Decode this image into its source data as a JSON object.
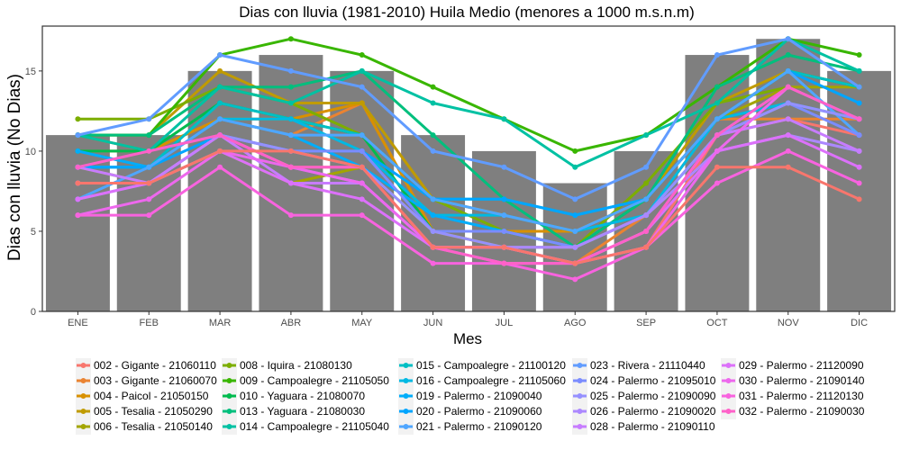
{
  "chart_data": {
    "type": "bar",
    "title": "Dias con lluvia (1981-2010) Huila Medio (menores a 1000 m.s.n.m)",
    "xlabel": "Mes",
    "ylabel": "Dias con lluvia (No Dias)",
    "categories": [
      "ENE",
      "FEB",
      "MAR",
      "ABR",
      "MAY",
      "JUN",
      "JUL",
      "AGO",
      "SEP",
      "OCT",
      "NOV",
      "DIC"
    ],
    "bar_values": [
      11,
      11,
      15,
      16,
      15,
      11,
      10,
      8,
      10,
      16,
      17,
      15
    ],
    "bar_color": "#7f7f7f",
    "ylim": [
      0,
      17.8
    ],
    "yticks": [
      0,
      5,
      10,
      15
    ],
    "grid": false,
    "legend_position": "bottom",
    "series": [
      {
        "name": "002 - Gigante - 21060110",
        "color": "#F8766D",
        "values": [
          8,
          8,
          11,
          9,
          9,
          4,
          4,
          3,
          4,
          11,
          12,
          11
        ]
      },
      {
        "name": "003 - Gigante - 21060070",
        "color": "#EA8331",
        "values": [
          10,
          10,
          12,
          11,
          13,
          5,
          4,
          3,
          6,
          12,
          12,
          12
        ]
      },
      {
        "name": "004 - Paicol - 21050150",
        "color": "#D89000",
        "values": [
          11,
          10,
          12,
          12,
          13,
          5,
          5,
          5,
          7,
          12,
          15,
          14
        ]
      },
      {
        "name": "005 - Tesalia - 21050290",
        "color": "#C09B00",
        "values": [
          11,
          11,
          15,
          13,
          13,
          7,
          6,
          5,
          7,
          13,
          15,
          14
        ]
      },
      {
        "name": "006 - Tesalia - 21050140",
        "color": "#A3A500",
        "values": [
          9,
          8,
          10,
          8,
          9,
          5,
          4,
          4,
          6,
          12,
          14,
          14
        ]
      },
      {
        "name": "008 - Iquira - 21080130",
        "color": "#7CAE00",
        "values": [
          12,
          12,
          14,
          13,
          11,
          7,
          5,
          4,
          8,
          13,
          14,
          12
        ]
      },
      {
        "name": "009 - Campoalegre - 21105050",
        "color": "#39B600",
        "values": [
          11,
          11,
          16,
          17,
          16,
          14,
          12,
          10,
          11,
          14,
          17,
          16
        ]
      },
      {
        "name": "010 - Yaguara - 21080070",
        "color": "#00BB4E",
        "values": [
          10,
          10,
          13,
          12,
          11,
          5,
          5,
          4,
          7,
          12,
          15,
          14
        ]
      },
      {
        "name": "013 - Yaguara - 21080030",
        "color": "#00BF7D",
        "values": [
          11,
          11,
          14,
          14,
          15,
          11,
          7,
          4,
          7,
          14,
          16,
          15
        ]
      },
      {
        "name": "014 - Campoalegre - 21105040",
        "color": "#00C1A3",
        "values": [
          11,
          10,
          14,
          13,
          15,
          13,
          12,
          9,
          11,
          13,
          17,
          15
        ]
      },
      {
        "name": "015 - Campoalegre - 21100120",
        "color": "#00BFC4",
        "values": [
          9,
          9,
          13,
          12,
          11,
          7,
          7,
          6,
          7,
          12,
          15,
          14
        ]
      },
      {
        "name": "016 - Campoalegre - 21105060",
        "color": "#00B9E3",
        "values": [
          9,
          9,
          12,
          12,
          10,
          6,
          6,
          5,
          6,
          12,
          13,
          12
        ]
      },
      {
        "name": "019 - Palermo - 21090040",
        "color": "#00ADFA",
        "values": [
          10,
          9,
          12,
          11,
          9,
          6,
          5,
          4,
          6,
          11,
          14,
          12
        ]
      },
      {
        "name": "020 - Palermo - 21090060",
        "color": "#00A5FF",
        "values": [
          9,
          9,
          11,
          10,
          10,
          7,
          7,
          6,
          7,
          12,
          15,
          13
        ]
      },
      {
        "name": "021 - Palermo - 21090120",
        "color": "#4FA6FF",
        "values": [
          7,
          9,
          12,
          11,
          11,
          7,
          6,
          5,
          7,
          12,
          15,
          11
        ]
      },
      {
        "name": "023 - Rivera - 21110440",
        "color": "#619CFF",
        "values": [
          11,
          12,
          16,
          15,
          14,
          10,
          9,
          7,
          9,
          16,
          17,
          14
        ]
      },
      {
        "name": "024 - Palermo - 21095010",
        "color": "#7B8CFF",
        "values": [
          8,
          8,
          11,
          10,
          10,
          5,
          5,
          4,
          6,
          11,
          13,
          11
        ]
      },
      {
        "name": "025 - Palermo - 21090090",
        "color": "#9590FF",
        "values": [
          7,
          8,
          11,
          10,
          9,
          5,
          4,
          4,
          6,
          11,
          13,
          12
        ]
      },
      {
        "name": "026 - Palermo - 21090020",
        "color": "#AC88FF",
        "values": [
          8,
          8,
          11,
          9,
          8,
          4,
          4,
          4,
          6,
          10,
          11,
          10
        ]
      },
      {
        "name": "028 - Palermo - 21090110",
        "color": "#C77CFF",
        "values": [
          9,
          8,
          11,
          8,
          8,
          4,
          4,
          3,
          5,
          11,
          12,
          10
        ]
      },
      {
        "name": "029 - Palermo - 21120090",
        "color": "#DC71FA",
        "values": [
          7,
          8,
          10,
          8,
          7,
          4,
          3,
          3,
          5,
          10,
          11,
          9
        ]
      },
      {
        "name": "030 - Palermo - 21090140",
        "color": "#ED68ED",
        "values": [
          6,
          7,
          10,
          9,
          8,
          4,
          4,
          3,
          4,
          10,
          14,
          12
        ]
      },
      {
        "name": "031 - Palermo - 21120130",
        "color": "#F863DF",
        "values": [
          6,
          6,
          9,
          6,
          6,
          3,
          3,
          2,
          4,
          8,
          10,
          8
        ]
      },
      {
        "name": "032 - Palermo - 21090030",
        "color": "#FF61C9",
        "values": [
          9,
          10,
          11,
          9,
          9,
          4,
          3,
          3,
          5,
          11,
          14,
          12
        ]
      },
      {
        "name": "",
        "color": "#F8766D",
        "values": [
          8,
          8,
          10,
          10,
          9,
          4,
          4,
          3,
          4,
          9,
          9,
          7
        ]
      }
    ]
  }
}
